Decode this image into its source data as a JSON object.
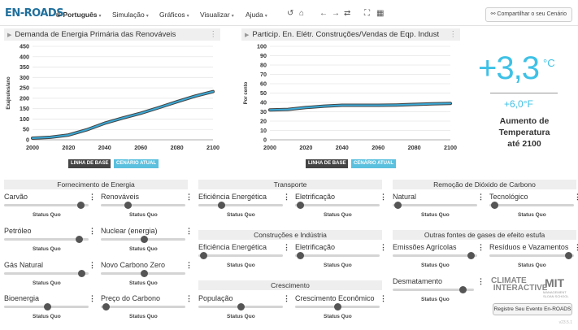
{
  "app": {
    "logo_text": "EN-ROADS"
  },
  "menu": {
    "language": "Português",
    "simulation": "Simulação",
    "graphs": "Gráficos",
    "view": "Visualizar",
    "help": "Ajuda"
  },
  "toolbar": {
    "share_label": "Compartilhar o seu Cenário"
  },
  "graph_left": {
    "title": "Demanda de Energia Primária das Renováveis"
  },
  "graph_right": {
    "title": "Particip. En. Elétr. Construções/Vendas de Eqp. Indust"
  },
  "legend": {
    "baseline": "LINHA DE BASE",
    "current": "CENÁRIO ATUAL"
  },
  "temperature": {
    "celsius_value": "+3,3",
    "celsius_unit": "°C",
    "fahrenheit": "+6,0°F",
    "caption_line1": "Aumento de",
    "caption_line2": "Temperatura",
    "caption_line3": "até 2100"
  },
  "sections": {
    "energy_supply": "Fornecimento de Energia",
    "transport": "Transporte",
    "buildings_industry": "Construções e Indústria",
    "growth": "Crescimento",
    "carbon_removal": "Remoção de Dióxido de Carbono",
    "other_gases": "Outras fontes de gases de efeito estufa"
  },
  "sliders": {
    "coal": "Carvão",
    "renewables": "Renováveis",
    "oil": "Petróleo",
    "nuclear": "Nuclear (energia)",
    "gas": "Gás Natural",
    "new_zero_carbon": "Novo Carbono Zero",
    "bioenergy": "Bioenergia",
    "carbon_price": "Preço do Carbono",
    "transport_efficiency": "Eficiência Energética",
    "transport_electrification": "Eletrificação",
    "buildings_efficiency": "Eficiência Energética",
    "buildings_electrification": "Eletrificação",
    "population": "População",
    "economic_growth": "Crescimento Econômico",
    "natural_removal": "Natural",
    "tech_removal": "Tecnológico",
    "agri_emissions": "Emissões Agrícolas",
    "waste_leakage": "Resíduos e Vazamentos",
    "deforestation": "Desmatamento",
    "status_quo": "Status Quo"
  },
  "slider_levels": {
    "coal": 0.95,
    "renewables": 0.3,
    "oil": 0.93,
    "nuclear": 0.52,
    "gas": 0.96,
    "new_zero_carbon": 0.52,
    "bioenergy": 0.52,
    "carbon_price": 0.02,
    "transport_efficiency": 0.25,
    "transport_electrification": 0.02,
    "buildings_efficiency": 0.02,
    "buildings_electrification": 0.02,
    "population": 0.5,
    "economic_growth": 0.5,
    "natural_removal": 0.02,
    "tech_removal": 0.02,
    "agri_emissions": 0.97,
    "waste_leakage": 0.98,
    "deforestation": 0.9
  },
  "footer": {
    "climate_interactive_logo": "CLIMATE INTERACTIVE",
    "mit_logo": "MIT",
    "mit_logo_sub": "MANAGEMENT SLOAN SCHOOL",
    "register_button": "Registre Seu Evento En-ROADS",
    "version": "v23.5.1"
  },
  "colors": {
    "accent": "#3ec1e6",
    "baseline": "#444444",
    "current": "#2f8fb8"
  },
  "chart_data": [
    {
      "type": "line",
      "title": "Demanda de Energia Primária das Renováveis",
      "ylabel": "Exajoules/ano",
      "xlim": [
        2000,
        2100
      ],
      "ylim": [
        0,
        450
      ],
      "xticks": [
        2000,
        2020,
        2040,
        2060,
        2080,
        2100
      ],
      "yticks": [
        0,
        50,
        100,
        150,
        200,
        250,
        300,
        350,
        400,
        450
      ],
      "x": [
        2000,
        2010,
        2020,
        2030,
        2040,
        2050,
        2060,
        2070,
        2080,
        2090,
        2100
      ],
      "series": [
        {
          "name": "LINHA DE BASE",
          "values": [
            8,
            12,
            23,
            48,
            80,
            105,
            128,
            155,
            183,
            210,
            232
          ]
        },
        {
          "name": "CENÁRIO ATUAL",
          "values": [
            8,
            12,
            23,
            48,
            80,
            105,
            128,
            155,
            183,
            210,
            232
          ]
        }
      ]
    },
    {
      "type": "line",
      "title": "Particip. En. Elétr. Construções/Vendas de Eqp. Indust",
      "ylabel": "Por cento",
      "xlim": [
        2000,
        2100
      ],
      "ylim": [
        0,
        100
      ],
      "xticks": [
        2000,
        2020,
        2040,
        2060,
        2080,
        2100
      ],
      "yticks": [
        0,
        10,
        20,
        30,
        40,
        50,
        60,
        70,
        80,
        90,
        100
      ],
      "x": [
        2000,
        2010,
        2020,
        2030,
        2040,
        2050,
        2060,
        2070,
        2080,
        2090,
        2100
      ],
      "series": [
        {
          "name": "LINHA DE BASE",
          "values": [
            32,
            32.5,
            34.5,
            36,
            37,
            37,
            37,
            37.2,
            37.8,
            38.5,
            39
          ]
        },
        {
          "name": "CENÁRIO ATUAL",
          "values": [
            32,
            32.5,
            34.5,
            36,
            37,
            37,
            37,
            37.2,
            37.8,
            38.5,
            39
          ]
        }
      ]
    }
  ]
}
